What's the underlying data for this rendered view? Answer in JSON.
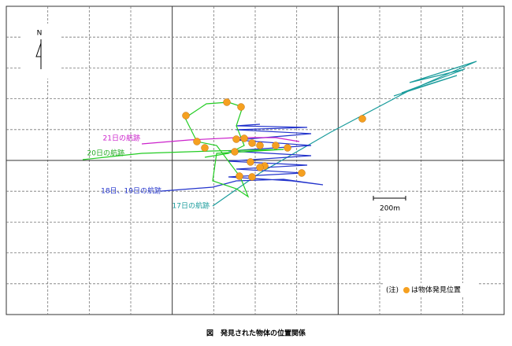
{
  "map": {
    "north": "N",
    "tracks": {
      "day21": "21日の航跡",
      "day20": "20日の航跡",
      "day18_19": "18日、19日の航跡",
      "day17": "17日の航跡"
    },
    "scale": "200m",
    "note": {
      "prefix": "(注)",
      "text": "は物体発見位置"
    },
    "caption": "図　発見された物体の位置関係"
  }
}
